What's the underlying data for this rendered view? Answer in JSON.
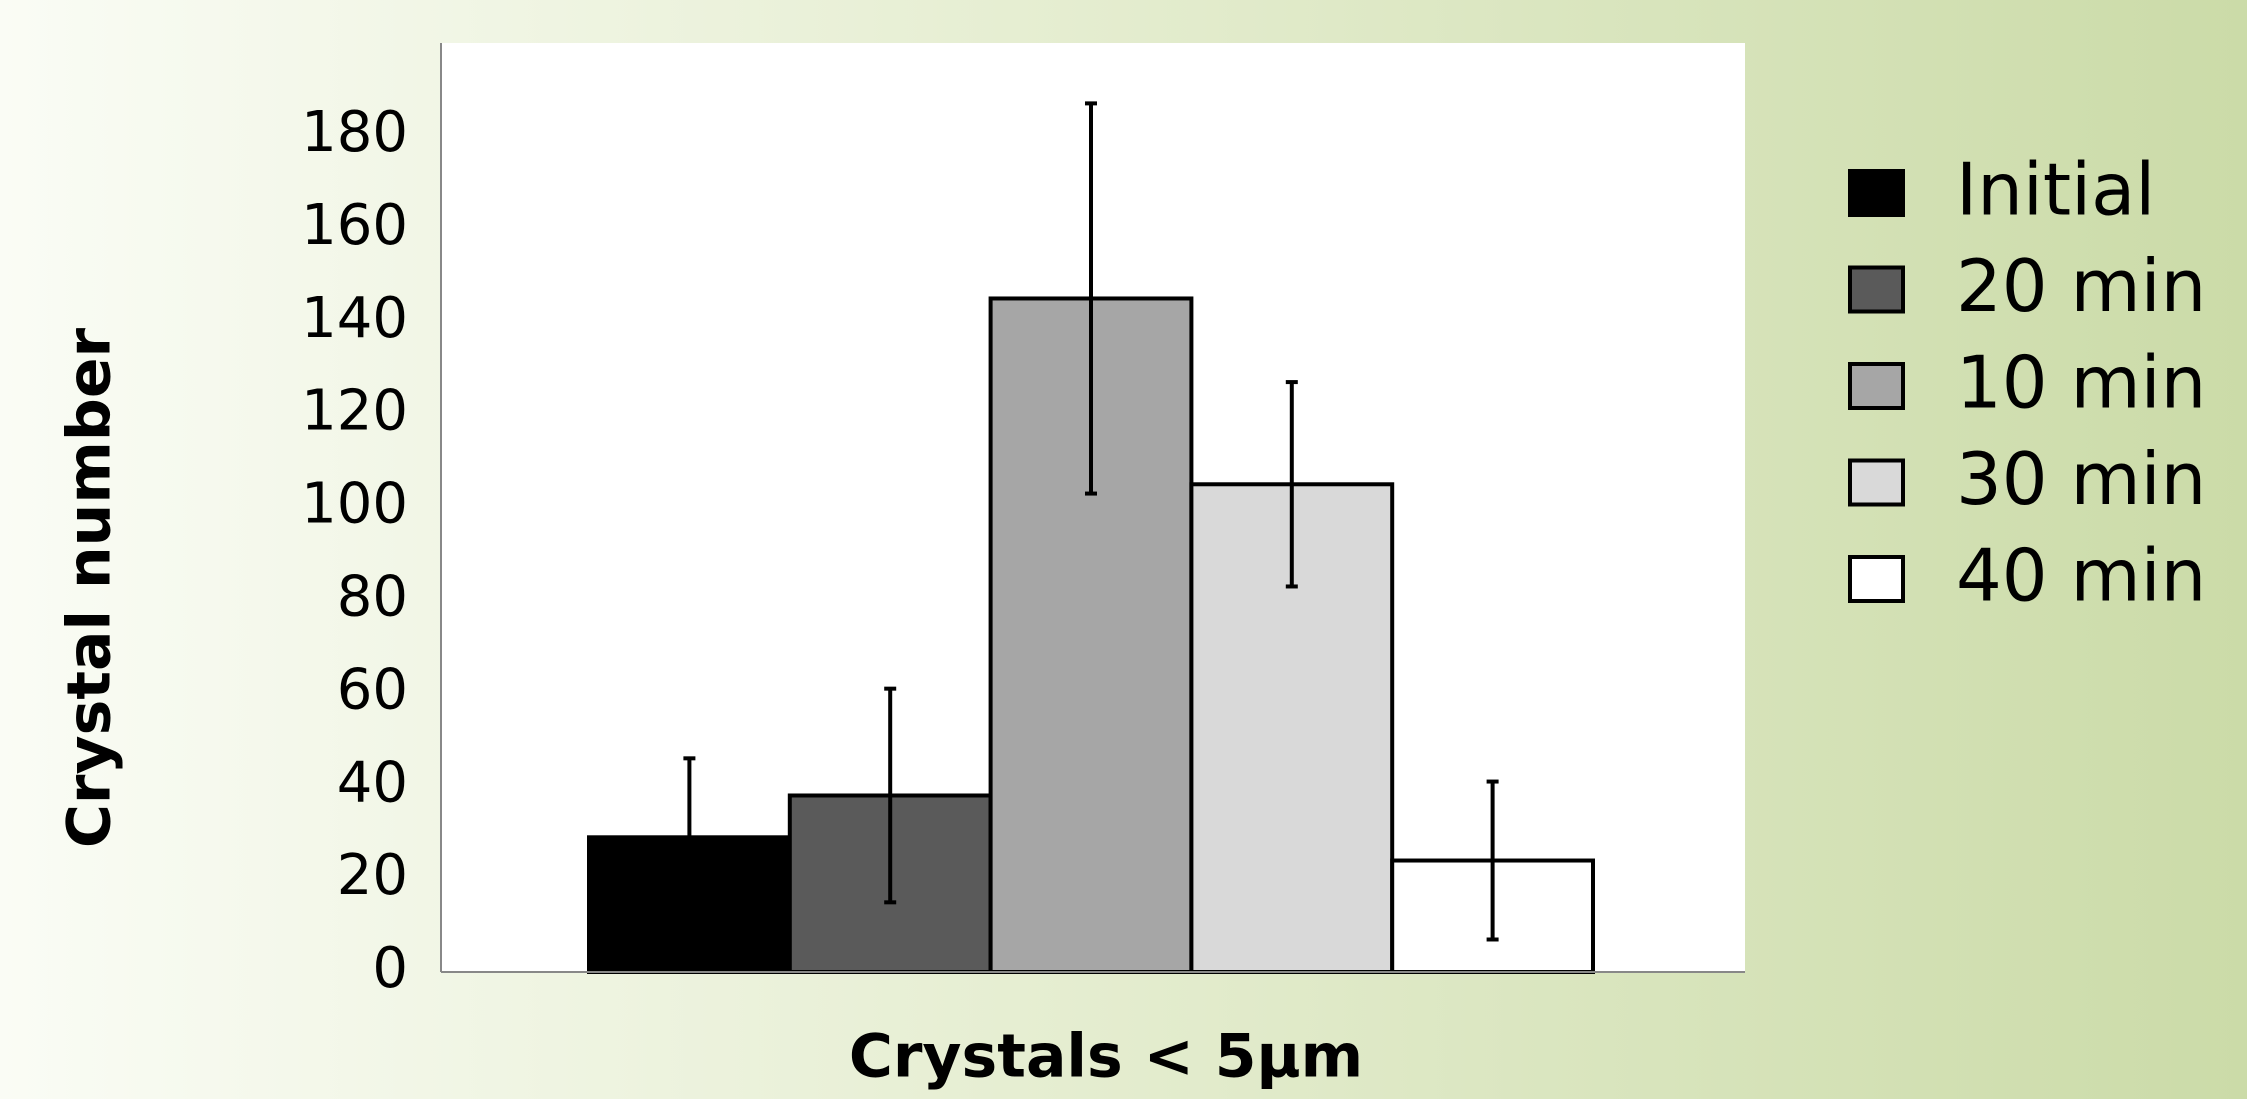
{
  "chart_data": {
    "type": "bar",
    "x_label": "Crystals < 5μm",
    "y_label": "Crystal number",
    "series": [
      {
        "name": "Initial",
        "color": "#000000",
        "values": [
          29
        ],
        "errors": [
          17
        ]
      },
      {
        "name": "20 min",
        "color": "#5a5a5a",
        "values": [
          38
        ],
        "errors": [
          23
        ]
      },
      {
        "name": "10 min",
        "color": "#a6a6a6",
        "values": [
          145
        ],
        "errors": [
          42
        ]
      },
      {
        "name": "30 min",
        "color": "#d9d9d9",
        "values": [
          105
        ],
        "errors": [
          22
        ]
      },
      {
        "name": "40 min",
        "color": "#ffffff",
        "values": [
          24
        ],
        "errors": [
          17
        ]
      }
    ],
    "ylim": [
      0,
      200
    ],
    "yticks": [
      0,
      20,
      40,
      60,
      80,
      100,
      120,
      140,
      160,
      180
    ],
    "grid": false,
    "legend": "right"
  }
}
